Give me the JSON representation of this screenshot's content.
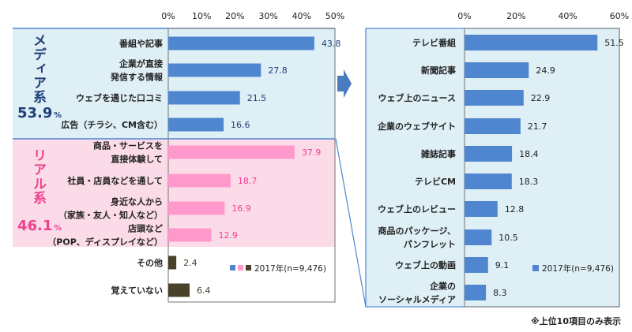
{
  "colors": {
    "media": "#4f86cf",
    "real": "#ff99cc",
    "other": "#4a4228",
    "media_bg": "#deeff6",
    "real_bg": "#fbdbe8",
    "media_text": "#1f3f7a",
    "real_text": "#f0418f",
    "arrow": "#4a7cbf"
  },
  "chart_data": [
    {
      "type": "bar",
      "orientation": "horizontal",
      "xlim": [
        0,
        50
      ],
      "ticks": [
        "0%",
        "10%",
        "20%",
        "30%",
        "40%",
        "50%"
      ],
      "tick_values": [
        0,
        10,
        20,
        30,
        40,
        50
      ],
      "groups": [
        {
          "label": "メディア系",
          "total": "53.9",
          "unit": "%",
          "color_key": "media"
        },
        {
          "label": "リアル系",
          "total": "46.1",
          "unit": "%",
          "color_key": "real"
        }
      ],
      "categories": [
        [
          "番組や記事"
        ],
        [
          "企業が直接",
          "発信する情報"
        ],
        [
          "ウェブを通じた口コミ"
        ],
        [
          "広告（チラシ、CM含む）"
        ],
        [
          "商品・サービスを",
          "直接体験して"
        ],
        [
          "社員・店員などを通して"
        ],
        [
          "身近な人から",
          "（家族・友人・知人など）"
        ],
        [
          "店頭など",
          "（POP、ディスプレイなど）"
        ],
        [
          "その他"
        ],
        [
          "覚えていない"
        ]
      ],
      "values": [
        43.8,
        27.8,
        21.5,
        16.6,
        37.9,
        18.7,
        16.9,
        12.9,
        2.4,
        6.4
      ],
      "value_labels": [
        "43.8",
        "27.8",
        "21.5",
        "16.6",
        "37.9",
        "18.7",
        "16.9",
        "12.9",
        "2.4",
        "6.4"
      ],
      "bar_group": [
        "media",
        "media",
        "media",
        "media",
        "real",
        "real",
        "real",
        "real",
        "other",
        "other"
      ],
      "legend": "2017年(n=9,476)",
      "legend_placement": "bottom-right"
    },
    {
      "type": "bar",
      "orientation": "horizontal",
      "xlim": [
        0,
        60
      ],
      "ticks": [
        "0%",
        "20%",
        "40%",
        "60%"
      ],
      "tick_values": [
        0,
        20,
        40,
        60
      ],
      "categories": [
        [
          "テレビ番組"
        ],
        [
          "新聞記事"
        ],
        [
          "ウェブ上のニュース"
        ],
        [
          "企業のウェブサイト"
        ],
        [
          "雑誌記事"
        ],
        [
          "テレビCM"
        ],
        [
          "ウェブ上のレビュー"
        ],
        [
          "商品のパッケージ、",
          "パンフレット"
        ],
        [
          "ウェブ上の動画"
        ],
        [
          "企業の",
          "ソーシャルメディア"
        ]
      ],
      "values": [
        51.5,
        24.9,
        22.9,
        21.7,
        18.4,
        18.3,
        12.8,
        10.5,
        9.1,
        8.3
      ],
      "value_labels": [
        "51.5",
        "24.9",
        "22.9",
        "21.7",
        "18.4",
        "18.3",
        "12.8",
        "10.5",
        "9.1",
        "8.3"
      ],
      "legend": "2017年(n=9,476)",
      "legend_placement": "bottom-right",
      "note": "※上位10項目のみ表示"
    }
  ]
}
